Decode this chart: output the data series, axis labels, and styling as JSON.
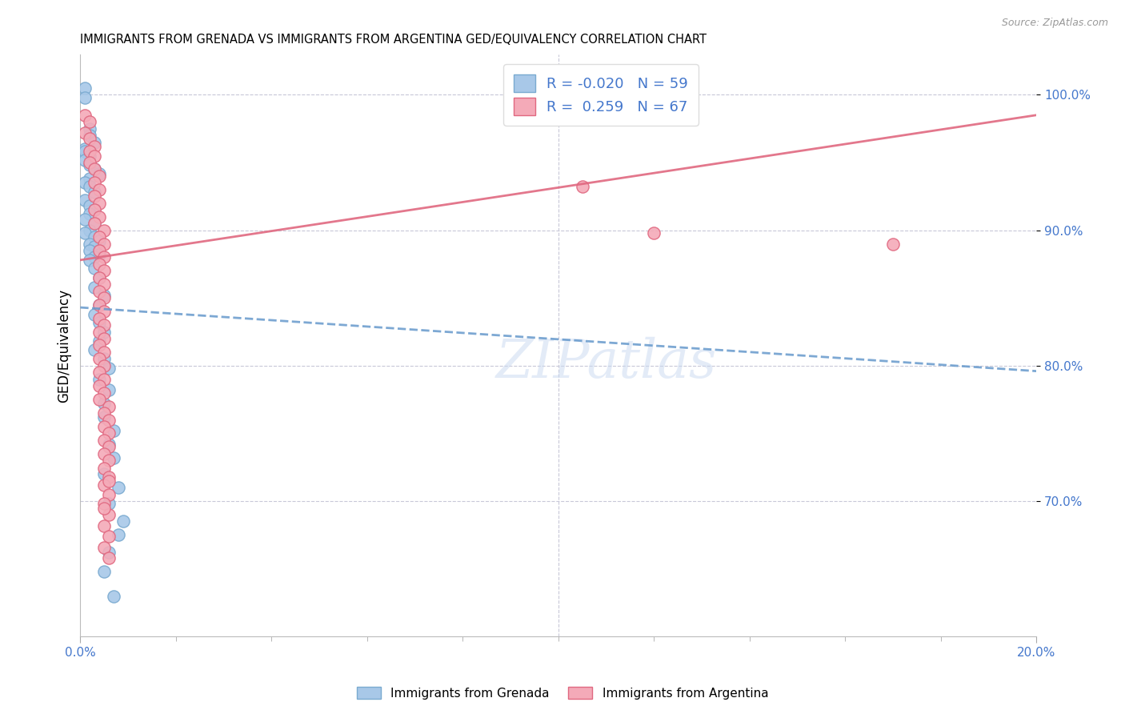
{
  "title": "IMMIGRANTS FROM GRENADA VS IMMIGRANTS FROM ARGENTINA GED/EQUIVALENCY CORRELATION CHART",
  "source": "Source: ZipAtlas.com",
  "ylabel": "GED/Equivalency",
  "right_yticks": [
    "70.0%",
    "80.0%",
    "90.0%",
    "100.0%"
  ],
  "right_ytick_vals": [
    0.7,
    0.8,
    0.9,
    1.0
  ],
  "R_grenada": -0.02,
  "N_grenada": 59,
  "R_argentina": 0.259,
  "N_argentina": 67,
  "color_grenada": "#a8c8e8",
  "color_argentina": "#f4aab8",
  "edge_color_grenada": "#7aaad0",
  "edge_color_argentina": "#e06880",
  "line_color_grenada": "#6699cc",
  "line_color_argentina": "#e06880",
  "background_color": "#ffffff",
  "grid_color": "#c8c8d8",
  "axis_label_color": "#4477cc",
  "xlim": [
    0.0,
    0.2
  ],
  "ylim": [
    0.6,
    1.03
  ],
  "xtick_positions": [
    0.0,
    0.2
  ],
  "xtick_labels": [
    "0.0%",
    "20.0%"
  ],
  "grenada_line_x": [
    0.0,
    0.2
  ],
  "grenada_line_y": [
    0.843,
    0.796
  ],
  "argentina_line_x": [
    0.0,
    0.2
  ],
  "argentina_line_y": [
    0.878,
    0.985
  ],
  "grenada_pts_x": [
    0.001,
    0.001,
    0.002,
    0.002,
    0.003,
    0.001,
    0.001,
    0.002,
    0.001,
    0.002,
    0.003,
    0.004,
    0.002,
    0.001,
    0.002,
    0.003,
    0.001,
    0.002,
    0.003,
    0.002,
    0.001,
    0.003,
    0.002,
    0.001,
    0.003,
    0.004,
    0.002,
    0.003,
    0.002,
    0.004,
    0.003,
    0.002,
    0.003,
    0.004,
    0.003,
    0.005,
    0.004,
    0.003,
    0.004,
    0.005,
    0.004,
    0.003,
    0.005,
    0.006,
    0.004,
    0.006,
    0.005,
    0.005,
    0.007,
    0.006,
    0.007,
    0.005,
    0.008,
    0.006,
    0.009,
    0.008,
    0.006,
    0.005,
    0.007
  ],
  "grenada_pts_y": [
    1.005,
    0.998,
    0.975,
    0.97,
    0.965,
    0.96,
    0.958,
    0.955,
    0.952,
    0.948,
    0.945,
    0.942,
    0.938,
    0.935,
    0.932,
    0.928,
    0.922,
    0.918,
    0.915,
    0.912,
    0.908,
    0.905,
    0.9,
    0.898,
    0.895,
    0.892,
    0.89,
    0.888,
    0.885,
    0.882,
    0.88,
    0.878,
    0.872,
    0.865,
    0.858,
    0.852,
    0.845,
    0.838,
    0.832,
    0.825,
    0.818,
    0.812,
    0.805,
    0.798,
    0.79,
    0.782,
    0.772,
    0.762,
    0.752,
    0.742,
    0.732,
    0.72,
    0.71,
    0.698,
    0.685,
    0.675,
    0.662,
    0.648,
    0.63
  ],
  "argentina_pts_x": [
    0.001,
    0.002,
    0.001,
    0.002,
    0.003,
    0.002,
    0.003,
    0.002,
    0.003,
    0.004,
    0.003,
    0.004,
    0.003,
    0.004,
    0.003,
    0.004,
    0.003,
    0.005,
    0.004,
    0.005,
    0.004,
    0.005,
    0.004,
    0.005,
    0.004,
    0.005,
    0.004,
    0.005,
    0.004,
    0.005,
    0.004,
    0.005,
    0.004,
    0.005,
    0.004,
    0.005,
    0.004,
    0.005,
    0.004,
    0.005,
    0.004,
    0.005,
    0.004,
    0.006,
    0.005,
    0.006,
    0.005,
    0.006,
    0.005,
    0.006,
    0.005,
    0.006,
    0.005,
    0.006,
    0.005,
    0.006,
    0.005,
    0.006,
    0.005,
    0.006,
    0.005,
    0.006,
    0.005,
    0.006,
    0.105,
    0.12,
    0.17
  ],
  "argentina_pts_y": [
    0.985,
    0.98,
    0.972,
    0.968,
    0.962,
    0.958,
    0.955,
    0.95,
    0.945,
    0.94,
    0.935,
    0.93,
    0.925,
    0.92,
    0.915,
    0.91,
    0.905,
    0.9,
    0.895,
    0.89,
    0.885,
    0.88,
    0.875,
    0.87,
    0.865,
    0.86,
    0.855,
    0.85,
    0.845,
    0.84,
    0.835,
    0.83,
    0.825,
    0.82,
    0.815,
    0.81,
    0.805,
    0.8,
    0.795,
    0.79,
    0.785,
    0.78,
    0.775,
    0.77,
    0.765,
    0.76,
    0.755,
    0.75,
    0.745,
    0.74,
    0.735,
    0.73,
    0.724,
    0.718,
    0.712,
    0.705,
    0.698,
    0.69,
    0.682,
    0.674,
    0.666,
    0.658,
    0.695,
    0.715,
    0.932,
    0.898,
    0.89
  ]
}
